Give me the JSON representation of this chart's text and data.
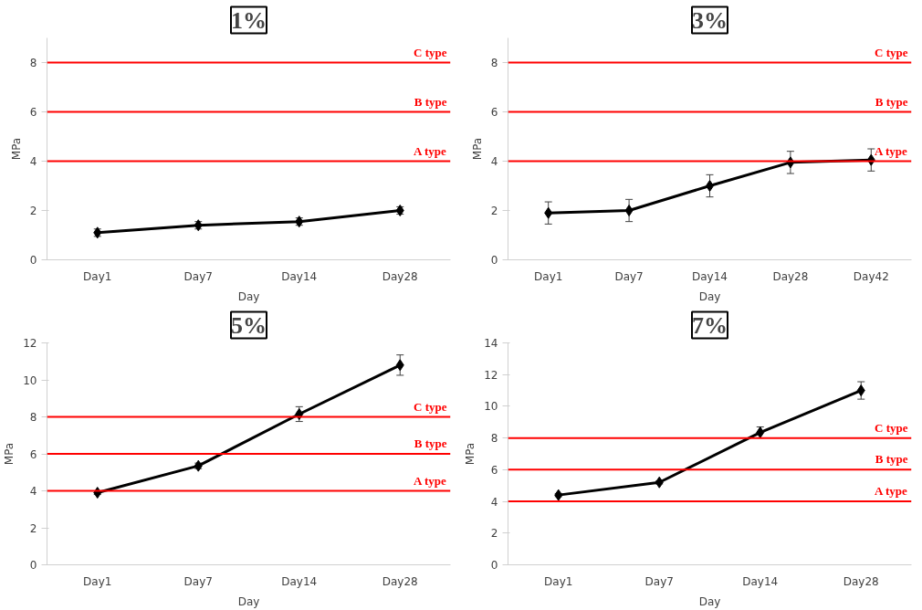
{
  "chart_data": [
    {
      "type": "line",
      "title": "1%",
      "xlabel": "Day",
      "ylabel": "MPa",
      "categories": [
        "Day1",
        "Day7",
        "Day14",
        "Day28"
      ],
      "color": "#000000",
      "marker": "diamond",
      "grid": false,
      "values": [
        1.1,
        1.4,
        1.55,
        2.0
      ],
      "errors": [
        0.15,
        0.15,
        0.15,
        0.15
      ],
      "ylim": [
        0,
        9
      ],
      "yticks": [
        0,
        2,
        4,
        6,
        8
      ],
      "ref_lines": [
        {
          "axis": "y",
          "value": 4,
          "label": "A type",
          "color": "#ff0000"
        },
        {
          "axis": "y",
          "value": 6,
          "label": "B type",
          "color": "#ff0000"
        },
        {
          "axis": "y",
          "value": 8,
          "label": "C type",
          "color": "#ff0000"
        }
      ]
    },
    {
      "type": "line",
      "title": "3%",
      "xlabel": "Day",
      "ylabel": "MPa",
      "categories": [
        "Day1",
        "Day7",
        "Day14",
        "Day28",
        "Day42"
      ],
      "color": "#000000",
      "marker": "diamond",
      "grid": false,
      "values": [
        1.9,
        2.0,
        3.0,
        3.95,
        4.05
      ],
      "errors": [
        0.45,
        0.45,
        0.45,
        0.45,
        0.45
      ],
      "ylim": [
        0,
        9
      ],
      "yticks": [
        0,
        2,
        4,
        6,
        8
      ],
      "ref_lines": [
        {
          "axis": "y",
          "value": 4,
          "label": "A type",
          "color": "#ff0000"
        },
        {
          "axis": "y",
          "value": 6,
          "label": "B type",
          "color": "#ff0000"
        },
        {
          "axis": "y",
          "value": 8,
          "label": "C type",
          "color": "#ff0000"
        }
      ]
    },
    {
      "type": "line",
      "title": "5%",
      "xlabel": "Day",
      "ylabel": "MPa",
      "categories": [
        "Day1",
        "Day7",
        "Day14",
        "Day28"
      ],
      "color": "#000000",
      "marker": "diamond",
      "grid": false,
      "values": [
        3.9,
        5.35,
        8.15,
        10.8
      ],
      "errors": [
        0.1,
        0.15,
        0.4,
        0.55
      ],
      "ylim": [
        0,
        12
      ],
      "yticks": [
        0,
        2,
        4,
        6,
        8,
        10,
        12
      ],
      "ref_lines": [
        {
          "axis": "y",
          "value": 4,
          "label": "A type",
          "color": "#ff0000"
        },
        {
          "axis": "y",
          "value": 6,
          "label": "B type",
          "color": "#ff0000"
        },
        {
          "axis": "y",
          "value": 8,
          "label": "C type",
          "color": "#ff0000"
        }
      ]
    },
    {
      "type": "line",
      "title": "7%",
      "xlabel": "Day",
      "ylabel": "MPa",
      "categories": [
        "Day1",
        "Day7",
        "Day14",
        "Day28"
      ],
      "color": "#000000",
      "marker": "diamond",
      "grid": false,
      "values": [
        4.4,
        5.2,
        8.35,
        11.0
      ],
      "errors": [
        0.1,
        0.1,
        0.35,
        0.55
      ],
      "ylim": [
        0,
        14
      ],
      "yticks": [
        0,
        2,
        4,
        6,
        8,
        10,
        12,
        14
      ],
      "ref_lines": [
        {
          "axis": "y",
          "value": 4,
          "label": "A type",
          "color": "#ff0000"
        },
        {
          "axis": "y",
          "value": 6,
          "label": "B type",
          "color": "#ff0000"
        },
        {
          "axis": "y",
          "value": 8,
          "label": "C type",
          "color": "#ff0000"
        }
      ]
    }
  ]
}
